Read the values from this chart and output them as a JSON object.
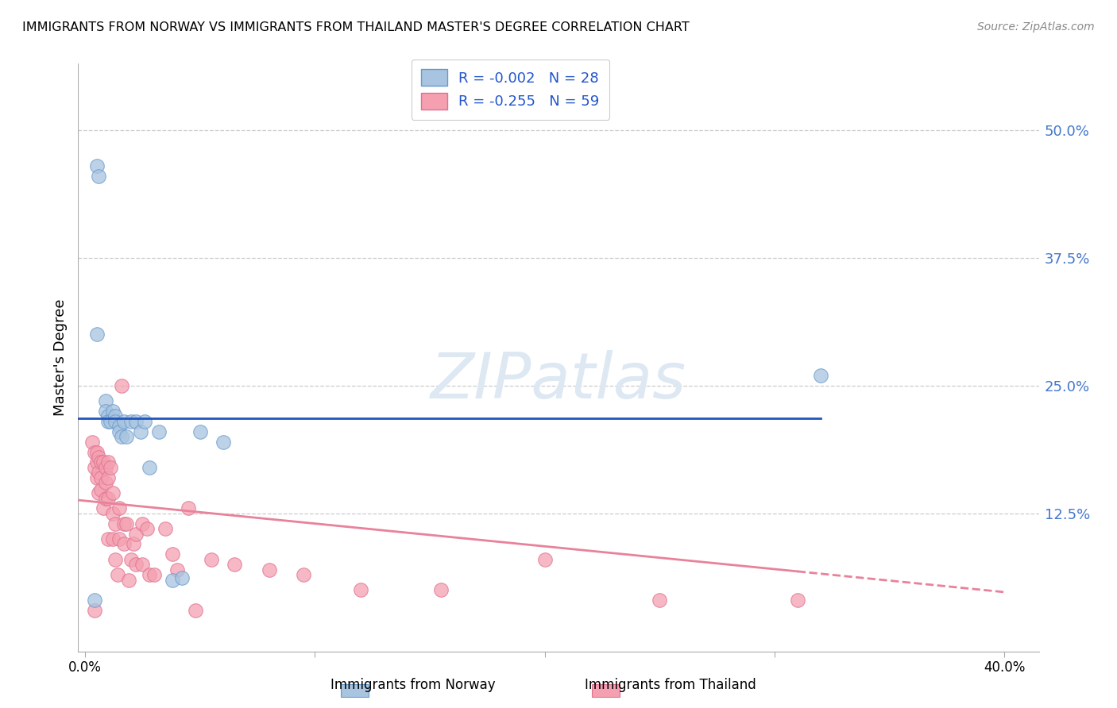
{
  "title": "IMMIGRANTS FROM NORWAY VS IMMIGRANTS FROM THAILAND MASTER'S DEGREE CORRELATION CHART",
  "source": "Source: ZipAtlas.com",
  "ylabel": "Master's Degree",
  "ytick_labels": [
    "50.0%",
    "37.5%",
    "25.0%",
    "12.5%"
  ],
  "ytick_values": [
    0.5,
    0.375,
    0.25,
    0.125
  ],
  "xlim": [
    -0.003,
    0.415
  ],
  "ylim": [
    -0.01,
    0.565
  ],
  "norway_color": "#a8c4e0",
  "norway_edge_color": "#6699cc",
  "thailand_color": "#f4a0b0",
  "thailand_edge_color": "#e07090",
  "norway_line_color": "#2255bb",
  "thailand_line_color": "#e8829a",
  "norway_R": -0.002,
  "norway_N": 28,
  "thailand_R": -0.255,
  "thailand_N": 59,
  "norway_line_y": 0.218,
  "thailand_line_start_y": 0.138,
  "thailand_line_end_y": 0.048,
  "thailand_line_solid_end_x": 0.31,
  "norway_scatter_x": [
    0.005,
    0.006,
    0.005,
    0.009,
    0.009,
    0.01,
    0.01,
    0.011,
    0.012,
    0.013,
    0.013,
    0.015,
    0.015,
    0.016,
    0.017,
    0.018,
    0.02,
    0.022,
    0.024,
    0.026,
    0.028,
    0.032,
    0.038,
    0.042,
    0.05,
    0.06,
    0.32,
    0.004
  ],
  "norway_scatter_y": [
    0.465,
    0.455,
    0.3,
    0.235,
    0.225,
    0.22,
    0.215,
    0.215,
    0.225,
    0.22,
    0.215,
    0.21,
    0.205,
    0.2,
    0.215,
    0.2,
    0.215,
    0.215,
    0.205,
    0.215,
    0.17,
    0.205,
    0.06,
    0.062,
    0.205,
    0.195,
    0.26,
    0.04
  ],
  "thailand_scatter_x": [
    0.003,
    0.004,
    0.004,
    0.005,
    0.005,
    0.005,
    0.006,
    0.006,
    0.006,
    0.007,
    0.007,
    0.007,
    0.008,
    0.008,
    0.009,
    0.009,
    0.009,
    0.01,
    0.01,
    0.01,
    0.01,
    0.011,
    0.012,
    0.012,
    0.012,
    0.013,
    0.013,
    0.014,
    0.015,
    0.015,
    0.016,
    0.017,
    0.017,
    0.018,
    0.019,
    0.02,
    0.021,
    0.022,
    0.022,
    0.025,
    0.025,
    0.027,
    0.028,
    0.03,
    0.035,
    0.038,
    0.04,
    0.045,
    0.048,
    0.055,
    0.065,
    0.08,
    0.095,
    0.12,
    0.155,
    0.2,
    0.25,
    0.31,
    0.004
  ],
  "thailand_scatter_y": [
    0.195,
    0.185,
    0.17,
    0.185,
    0.175,
    0.16,
    0.18,
    0.165,
    0.145,
    0.175,
    0.16,
    0.148,
    0.175,
    0.13,
    0.17,
    0.155,
    0.14,
    0.175,
    0.16,
    0.14,
    0.1,
    0.17,
    0.145,
    0.125,
    0.1,
    0.115,
    0.08,
    0.065,
    0.13,
    0.1,
    0.25,
    0.115,
    0.095,
    0.115,
    0.06,
    0.08,
    0.095,
    0.105,
    0.075,
    0.115,
    0.075,
    0.11,
    0.065,
    0.065,
    0.11,
    0.085,
    0.07,
    0.13,
    0.03,
    0.08,
    0.075,
    0.07,
    0.065,
    0.05,
    0.05,
    0.08,
    0.04,
    0.04,
    0.03
  ]
}
